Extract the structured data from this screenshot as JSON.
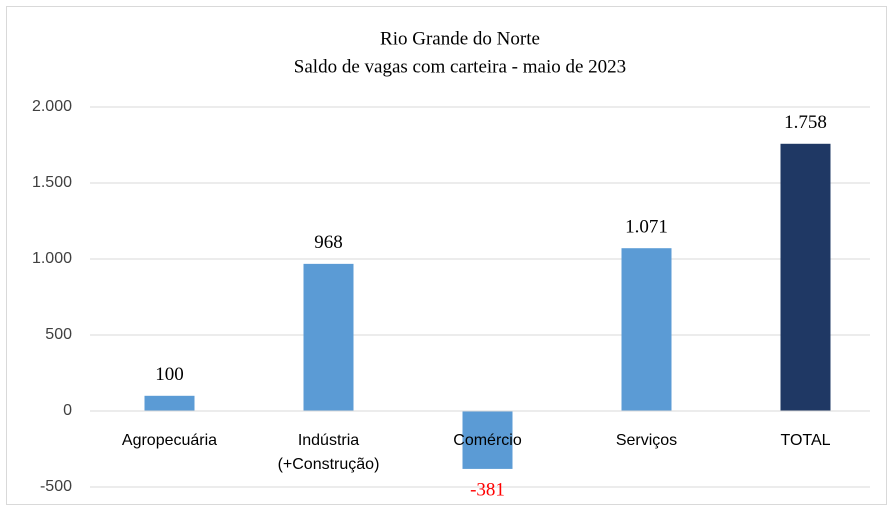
{
  "chart_data": {
    "type": "bar",
    "title": "Rio Grande do Norte",
    "subtitle": "Saldo de vagas com carteira - maio de 2023",
    "categories": [
      "Agropecuária",
      "Indústria\n(+Construção)",
      "Comércio",
      "Serviços",
      "TOTAL"
    ],
    "values": [
      100,
      968,
      -381,
      1071,
      1758
    ],
    "value_labels": [
      "100",
      "968",
      "-381",
      "1.071",
      "1.758"
    ],
    "colors": [
      "#5b9bd5",
      "#5b9bd5",
      "#5b9bd5",
      "#5b9bd5",
      "#1f3864"
    ],
    "ylim": [
      -500,
      2000
    ],
    "yticks": [
      -500,
      0,
      500,
      {
        "value": 1000,
        "label": "1.000"
      },
      {
        "value": 1500,
        "label": "1.500"
      },
      {
        "value": 2000,
        "label": "2.000"
      }
    ],
    "grid": true
  }
}
